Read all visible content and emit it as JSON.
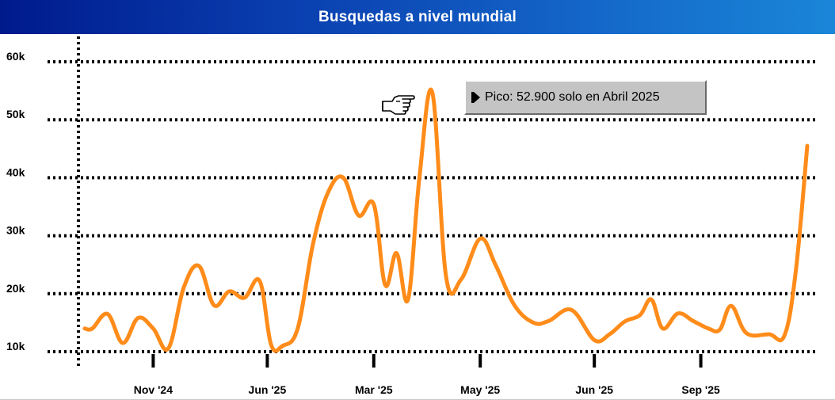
{
  "title": "Busquedas a nivel mundial",
  "tooltip": {
    "text": "Pico: 52.900 solo en Abril 2025"
  },
  "cursor_icon": "pointing-hand-icon",
  "colors": {
    "title_bar_start": "#001a8c",
    "title_bar_end": "#1a86d8",
    "line": "#ff8c1a",
    "grid": "#000000",
    "tooltip_bg": "#c4c4c4"
  },
  "chart_data": {
    "type": "line",
    "title": "Busquedas a nivel mundial",
    "xlabel": "",
    "ylabel": "",
    "ylim": [
      10000,
      60000
    ],
    "y_ticks": [
      {
        "value": 60000,
        "label": "60k"
      },
      {
        "value": 50000,
        "label": "50k"
      },
      {
        "value": 40000,
        "label": "40k"
      },
      {
        "value": 30000,
        "label": "30k"
      },
      {
        "value": 20000,
        "label": "20k"
      },
      {
        "value": 10000,
        "label": "10k"
      }
    ],
    "x_ticks": [
      {
        "x": 10,
        "label": "Nov '24"
      },
      {
        "x": 25,
        "label": "Jun '25"
      },
      {
        "x": 39,
        "label": "Mar '25"
      },
      {
        "x": 53,
        "label": "May '25"
      },
      {
        "x": 68,
        "label": "Jun '25"
      },
      {
        "x": 82,
        "label": "Sep '25"
      }
    ],
    "grid": true,
    "legend": "none",
    "series": [
      {
        "points": [
          [
            1,
            14000
          ],
          [
            2,
            14000
          ],
          [
            4,
            16500
          ],
          [
            6,
            11500
          ],
          [
            8,
            15800
          ],
          [
            10,
            14000
          ],
          [
            12,
            10600
          ],
          [
            14,
            21000
          ],
          [
            16,
            24800
          ],
          [
            18,
            18000
          ],
          [
            20,
            20400
          ],
          [
            22,
            19300
          ],
          [
            24,
            22200
          ],
          [
            25.5,
            11200
          ],
          [
            27,
            11000
          ],
          [
            29,
            14000
          ],
          [
            31,
            28500
          ],
          [
            33,
            37500
          ],
          [
            35,
            40000
          ],
          [
            37,
            33500
          ],
          [
            39,
            35400
          ],
          [
            40.5,
            21500
          ],
          [
            42,
            27000
          ],
          [
            43.5,
            19000
          ],
          [
            45,
            40000
          ],
          [
            46.7,
            54700
          ],
          [
            48.5,
            23000
          ],
          [
            50.5,
            22500
          ],
          [
            53,
            29500
          ],
          [
            55,
            25000
          ],
          [
            57.5,
            18000
          ],
          [
            60,
            15000
          ],
          [
            62,
            15300
          ],
          [
            65,
            17200
          ],
          [
            68,
            12000
          ],
          [
            70,
            13000
          ],
          [
            72,
            15200
          ],
          [
            74,
            16300
          ],
          [
            75.5,
            19000
          ],
          [
            77,
            14000
          ],
          [
            79,
            16600
          ],
          [
            81,
            15300
          ],
          [
            83,
            14000
          ],
          [
            84.5,
            13800
          ],
          [
            86,
            17900
          ],
          [
            88,
            13200
          ],
          [
            91,
            13000
          ],
          [
            93,
            12800
          ],
          [
            94.5,
            24000
          ],
          [
            96,
            45500
          ]
        ]
      }
    ]
  }
}
